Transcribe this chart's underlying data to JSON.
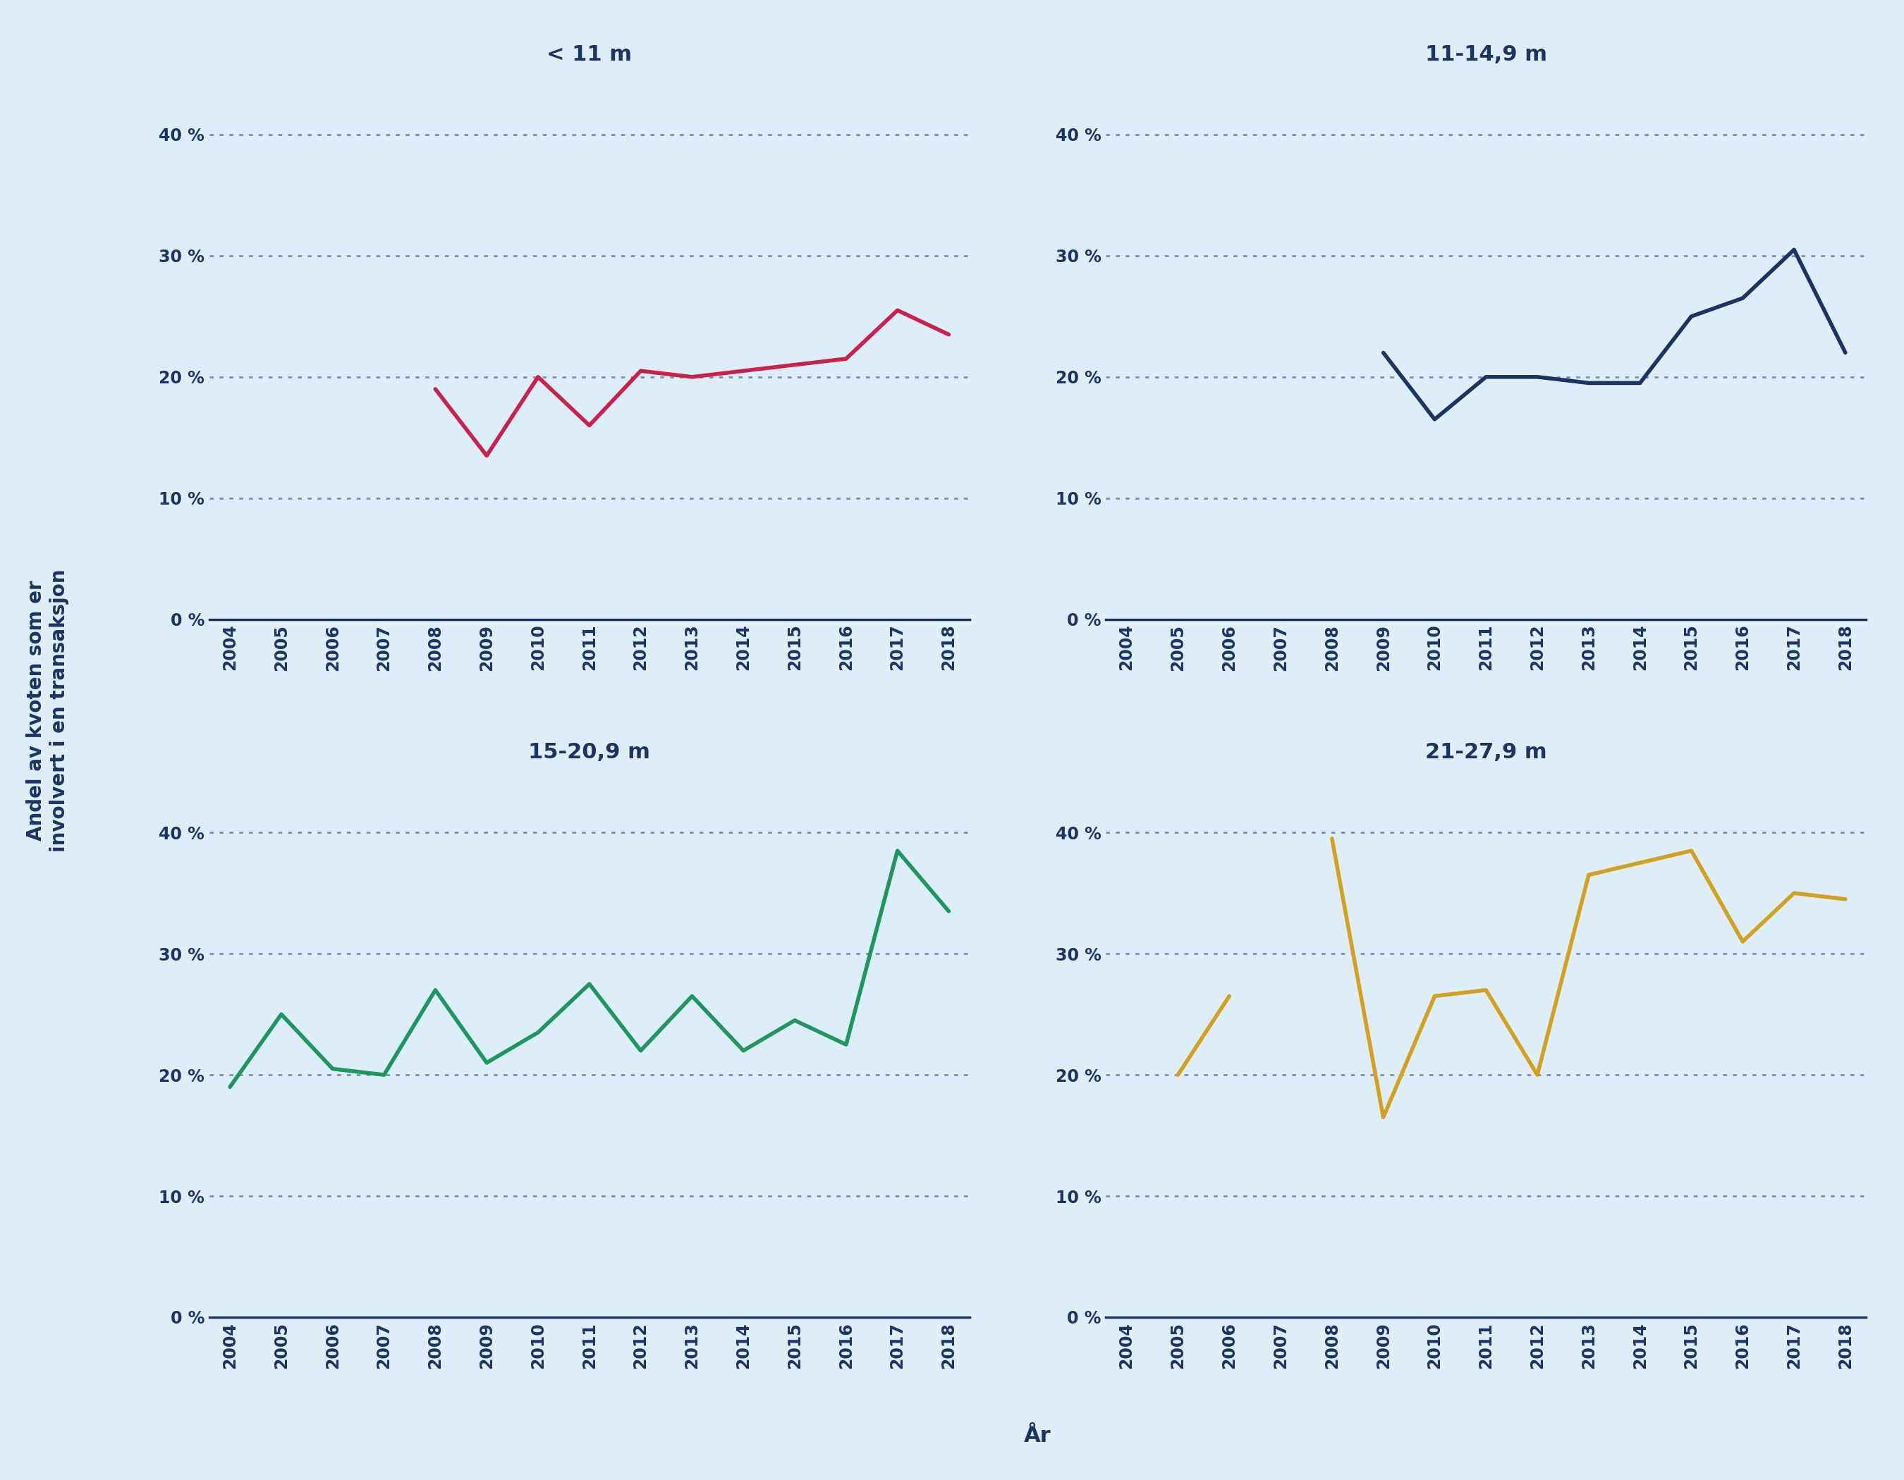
{
  "background_color": "#ddeef8",
  "title_color": "#1a3464",
  "line_color_top_left": "#cc1f4a",
  "line_color_top_right": "#1a3464",
  "line_color_bottom_left": "#1e9660",
  "line_color_bottom_right": "#d4a020",
  "years": [
    2004,
    2005,
    2006,
    2007,
    2008,
    2009,
    2010,
    2011,
    2012,
    2013,
    2014,
    2015,
    2016,
    2017,
    2018
  ],
  "data_lt11": [
    null,
    null,
    null,
    null,
    19.0,
    13.5,
    20.0,
    16.0,
    20.5,
    20.0,
    20.5,
    21.0,
    21.5,
    25.5,
    23.5
  ],
  "data_11_14": [
    null,
    null,
    null,
    null,
    null,
    22.0,
    16.5,
    20.0,
    20.0,
    19.5,
    19.5,
    25.0,
    26.5,
    30.5,
    22.0
  ],
  "data_15_20": [
    19.0,
    25.0,
    20.5,
    20.0,
    27.0,
    21.0,
    23.5,
    27.5,
    22.0,
    26.5,
    22.0,
    24.5,
    22.5,
    38.5,
    33.5
  ],
  "data_21_27": [
    null,
    20.0,
    26.5,
    null,
    39.5,
    16.5,
    26.5,
    27.0,
    20.0,
    36.5,
    37.5,
    38.5,
    31.0,
    35.0,
    34.5
  ],
  "titles": [
    "< 11 m",
    "11-14,9 m",
    "15-20,9 m",
    "21-27,9 m"
  ],
  "ylabel": "Andel av kvoten som er\ninvolvert i en transaksjon",
  "xlabel": "År",
  "ylim": [
    0,
    45
  ],
  "yticks": [
    0,
    10,
    20,
    30,
    40
  ],
  "ytick_labels": [
    "0 %",
    "10 %",
    "20 %",
    "30 %",
    "40 %"
  ],
  "title_fontsize": 22,
  "tick_fontsize": 17,
  "ylabel_fontsize": 20,
  "xlabel_fontsize": 22,
  "linewidth": 4.0,
  "axis_color": "#1a3464",
  "grid_color": "#1a3464",
  "grid_alpha": 0.5,
  "grid_dotsize": 2.0
}
